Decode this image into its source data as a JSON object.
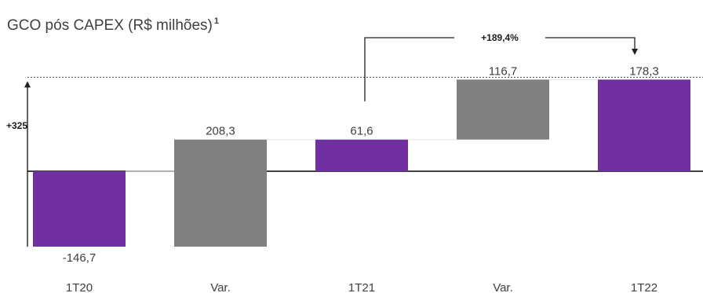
{
  "chart_data": {
    "type": "bar",
    "title": "GCO pós CAPEX (R$  milhões)",
    "title_superscript": "1",
    "categories": [
      "1T20",
      "Var.",
      "1T21",
      "Var.",
      "1T22"
    ],
    "values": [
      -146.7,
      208.3,
      61.6,
      116.7,
      178.3
    ],
    "value_labels": [
      "-146,7",
      "208,3",
      "61,6",
      "116,7",
      "178,3"
    ],
    "bar_kinds": [
      "total",
      "delta",
      "total",
      "delta",
      "total"
    ],
    "ylim": [
      -146.7,
      178.3
    ],
    "annotations": {
      "range_label": "+325",
      "growth_label": "+189,4%"
    },
    "colors": {
      "total": "#7030a0",
      "delta": "#808080",
      "baseline": "#000000",
      "text": "#404040"
    }
  }
}
